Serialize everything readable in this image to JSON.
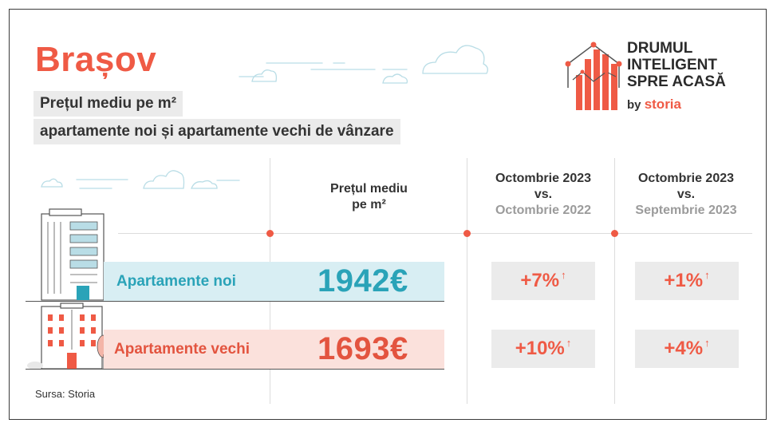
{
  "header": {
    "city": "Brașov",
    "subtitle_line1": "Prețul mediu pe m²",
    "subtitle_line2": "apartamente noi și apartamente vechi de vânzare"
  },
  "logo": {
    "line1": "DRUMUL",
    "line2": "INTELIGENT",
    "line3": "SPRE ACASĂ",
    "by": "by",
    "brand": "storia",
    "icon": "bar-chart-house-icon"
  },
  "columns": {
    "price_head_line1": "Prețul mediu",
    "price_head_line2": "pe m²",
    "yoy_head_line1": "Octombrie 2023",
    "yoy_head_line2": "vs.",
    "yoy_head_line3": "Octombrie 2022",
    "mom_head_line1": "Octombrie 2023",
    "mom_head_line2": "vs.",
    "mom_head_line3": "Septembrie 2023"
  },
  "rows": [
    {
      "label": "Apartamente noi",
      "price": "1942€",
      "yoy": "+7%",
      "mom": "+1%",
      "arrow": "↑"
    },
    {
      "label": "Apartamente vechi",
      "price": "1693€",
      "yoy": "+10%",
      "mom": "+4%",
      "arrow": "↑"
    }
  ],
  "footer": {
    "source": "Sursa: Storia"
  },
  "colors": {
    "accent": "#ef5a45",
    "teal": "#2aa3b8",
    "band_new": "#d8eef3",
    "band_old": "#fbe1dc",
    "chip": "#ebebeb"
  }
}
